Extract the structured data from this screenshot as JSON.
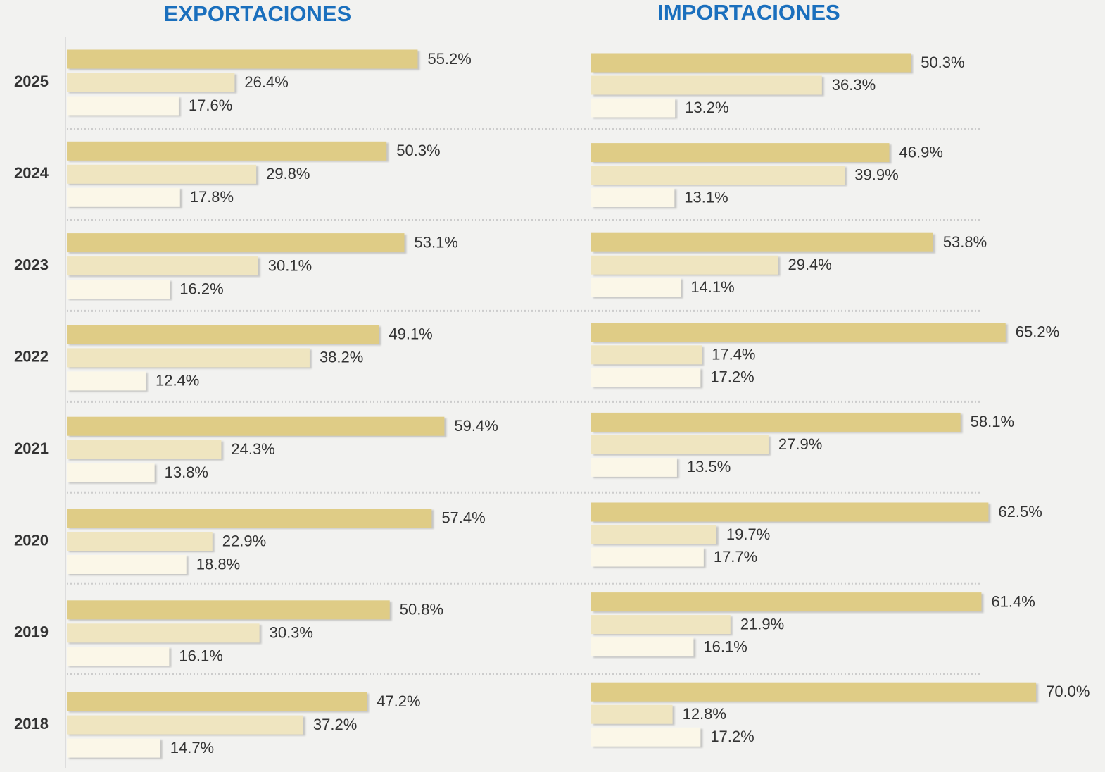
{
  "chart_data": [
    {
      "type": "bar",
      "orientation": "horizontal",
      "title": "EXPORTACIONES",
      "categories": [
        "2025",
        "2024",
        "2023",
        "2022",
        "2021",
        "2020",
        "2019",
        "2018"
      ],
      "series": [
        {
          "color": "#dfcc86",
          "values": [
            55.2,
            50.3,
            53.1,
            49.1,
            59.4,
            57.4,
            50.8,
            47.2
          ],
          "value_labels": [
            "55.2%",
            "50.3%",
            "53.1%",
            "49.1%",
            "59.4%",
            "57.4%",
            "50.8%",
            "47.2%"
          ]
        },
        {
          "color": "#efe5c0",
          "values": [
            26.4,
            29.8,
            30.1,
            38.2,
            24.3,
            22.9,
            30.3,
            37.2
          ],
          "value_labels": [
            "26.4%",
            "29.8%",
            "30.1%",
            "38.2%",
            "24.3%",
            "22.9%",
            "30.3%",
            "37.2%"
          ]
        },
        {
          "color": "#fbf7e8",
          "values": [
            17.6,
            17.8,
            16.2,
            12.4,
            13.8,
            18.8,
            16.1,
            14.7
          ],
          "value_labels": [
            "17.6%",
            "17.8%",
            "16.2%",
            "12.4%",
            "13.8%",
            "18.8%",
            "16.1%",
            "14.7%"
          ]
        }
      ]
    },
    {
      "type": "bar",
      "orientation": "horizontal",
      "title": "IMPORTACIONES",
      "series": [
        {
          "color": "#dfcc86",
          "values": [
            50.3,
            46.9,
            53.8,
            65.2,
            58.1,
            62.5,
            61.4,
            70.0
          ],
          "value_labels": [
            "50.3%",
            "46.9%",
            "53.8%",
            "65.2%",
            "58.1%",
            "62.5%",
            "61.4%",
            "70.0%"
          ]
        },
        {
          "color": "#efe5c0",
          "values": [
            36.3,
            39.9,
            29.4,
            17.4,
            27.9,
            19.7,
            21.9,
            12.8
          ],
          "value_labels": [
            "36.3%",
            "39.9%",
            "29.4%",
            "17.4%",
            "27.9%",
            "19.7%",
            "21.9%",
            "12.8%"
          ]
        },
        {
          "color": "#fbf7e8",
          "values": [
            13.2,
            13.1,
            14.1,
            17.2,
            13.5,
            17.7,
            16.1,
            17.2
          ],
          "value_labels": [
            "13.2%",
            "13.1%",
            "14.1%",
            "17.2%",
            "13.5%",
            "17.7%",
            "16.1%",
            "17.2%"
          ]
        }
      ]
    }
  ]
}
